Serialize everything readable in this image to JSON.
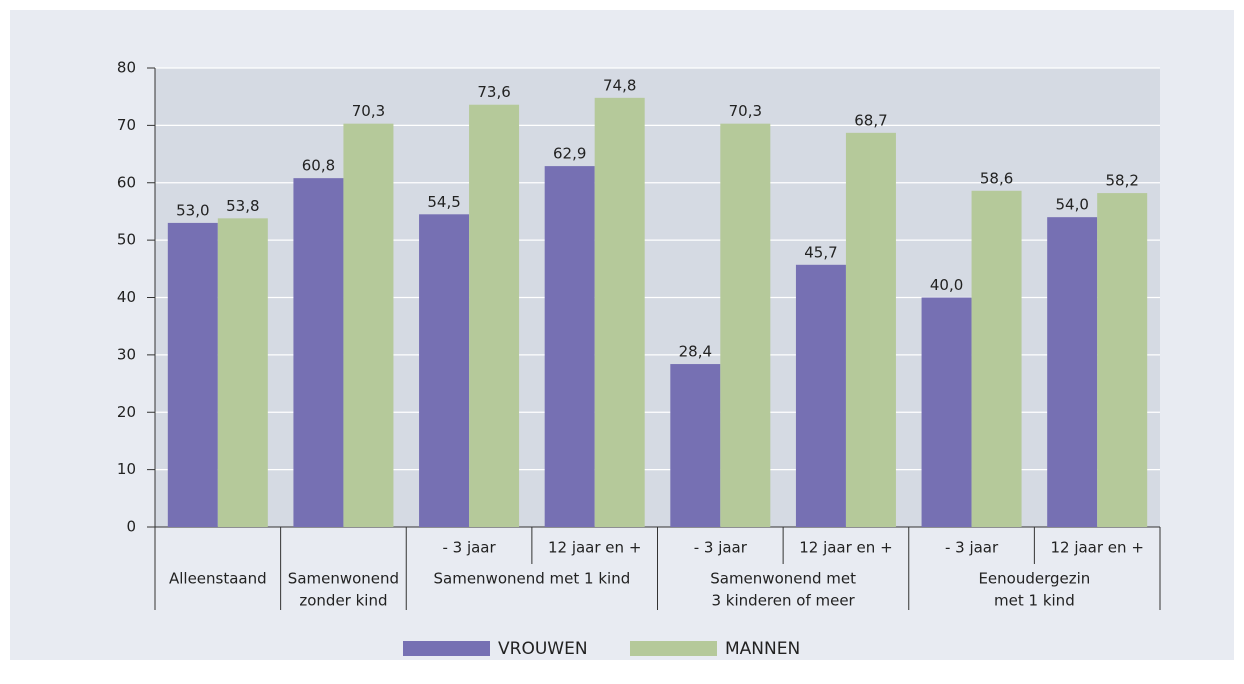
{
  "chart_data": {
    "type": "bar",
    "categories": [
      null,
      null,
      "- 3 jaar",
      "12 jaar en +",
      "- 3 jaar",
      "12 jaar en +",
      "- 3 jaar",
      "12 jaar en +"
    ],
    "groups": [
      {
        "label": [
          "Alleenstaand"
        ],
        "span": 1
      },
      {
        "label": [
          "Samenwonend",
          "zonder kind"
        ],
        "span": 1
      },
      {
        "label": [
          "Samenwonend met 1 kind"
        ],
        "span": 2
      },
      {
        "label": [
          "Samenwonend met",
          "3 kinderen of meer"
        ],
        "span": 2
      },
      {
        "label": [
          "Eenoudergezin",
          "met 1 kind"
        ],
        "span": 2
      }
    ],
    "series": [
      {
        "name": "VROUWEN",
        "color": "#7670b3",
        "values": [
          53.0,
          60.8,
          54.5,
          62.9,
          28.4,
          45.7,
          40.0,
          54.0
        ],
        "value_labels": [
          "53,0",
          "60,8",
          "54,5",
          "62,9",
          "28,4",
          "45,7",
          "40,0",
          "54,0"
        ]
      },
      {
        "name": "MANNEN",
        "color": "#b5c99a",
        "values": [
          53.8,
          70.3,
          73.6,
          74.8,
          70.3,
          68.7,
          58.6,
          58.2
        ],
        "value_labels": [
          "53,8",
          "70,3",
          "73,6",
          "74,8",
          "70,3",
          "68,7",
          "58,6",
          "58,2"
        ]
      }
    ],
    "ylim": [
      0,
      80
    ],
    "yticks": [
      0,
      10,
      20,
      30,
      40,
      50,
      60,
      70,
      80
    ],
    "grid": true
  }
}
